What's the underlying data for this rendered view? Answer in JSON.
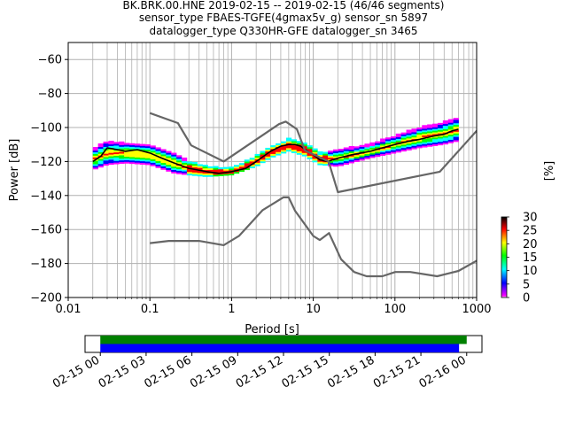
{
  "title_lines": [
    "BK.BRK.00.HNE   2019-02-15 -- 2019-02-15  (46/46 segments)",
    "sensor_type FBAES-TGFE(4gmax5v_g) sensor_sn 5897",
    "datalogger_type Q330HR-GFE datalogger_sn 3465"
  ],
  "colors": {
    "grid": "#b0b0b0",
    "mean_line": "#000000",
    "noise_model": "#666666",
    "bar_green": "#008000",
    "bar_blue": "#0000ff"
  },
  "chart_data": [
    {
      "type": "heatmap",
      "subtype": "probabilistic-power-spectral-density",
      "xlabel": "Period [s]",
      "ylabel": "Power [dB]",
      "x_scale": "log",
      "xlim": [
        0.01,
        1000
      ],
      "ylim": [
        -200,
        -50
      ],
      "x_ticks": [
        {
          "value": 0.01,
          "label": "0.01"
        },
        {
          "value": 0.1,
          "label": "0.1"
        },
        {
          "value": 1,
          "label": "1"
        },
        {
          "value": 10,
          "label": "10"
        },
        {
          "value": 100,
          "label": "100"
        },
        {
          "value": 1000,
          "label": "1000"
        }
      ],
      "y_ticks": [
        {
          "value": -60,
          "label": "−60"
        },
        {
          "value": -80,
          "label": "−80"
        },
        {
          "value": -100,
          "label": "−100"
        },
        {
          "value": -120,
          "label": "−120"
        },
        {
          "value": -140,
          "label": "−140"
        },
        {
          "value": -160,
          "label": "−160"
        },
        {
          "value": -180,
          "label": "−180"
        },
        {
          "value": -200,
          "label": "−200"
        }
      ],
      "grid": true,
      "colorbar": {
        "label": "[%]",
        "range": [
          0,
          30
        ],
        "ticks": [
          {
            "value": 0,
            "label": "0"
          },
          {
            "value": 5,
            "label": "5"
          },
          {
            "value": 10,
            "label": "10"
          },
          {
            "value": 15,
            "label": "15"
          },
          {
            "value": 20,
            "label": "20"
          },
          {
            "value": 25,
            "label": "25"
          },
          {
            "value": 30,
            "label": "30"
          }
        ],
        "colormap": [
          "#ffffff",
          "#ff00ff",
          "#0000ff",
          "#00ffff",
          "#00ff00",
          "#ffff00",
          "#ff0000",
          "#000000"
        ]
      },
      "series": [
        {
          "role": "mean",
          "x": [
            0.02,
            0.025,
            0.03,
            0.04,
            0.05,
            0.07,
            0.1,
            0.14,
            0.2,
            0.3,
            0.5,
            0.7,
            1,
            1.5,
            2,
            3,
            4,
            5,
            6,
            7,
            8,
            10,
            12,
            15,
            20,
            30,
            50,
            70,
            100,
            150,
            200,
            300,
            400,
            500,
            600
          ],
          "y": [
            -120,
            -117,
            -112,
            -113,
            -114,
            -113,
            -115,
            -118,
            -121,
            -124,
            -126,
            -127,
            -126,
            -124,
            -120,
            -114,
            -111,
            -110,
            -110,
            -111,
            -113,
            -116,
            -119,
            -120,
            -118,
            -116,
            -114,
            -112,
            -110,
            -108,
            -107,
            -105,
            -104,
            -102,
            -101
          ]
        },
        {
          "role": "high-noise-model",
          "x": [
            0.1,
            0.22,
            0.32,
            0.8,
            3.8,
            4.6,
            6.3,
            7.9,
            15.4,
            20,
            354.8,
            10000
          ],
          "y": [
            -91.5,
            -97.4,
            -110.5,
            -120,
            -98,
            -96.5,
            -101,
            -113.5,
            -120,
            -138,
            -126,
            -48.5
          ]
        },
        {
          "role": "low-noise-model",
          "x": [
            0.1,
            0.17,
            0.4,
            0.8,
            1.24,
            2.4,
            4.3,
            5,
            6,
            10,
            12,
            15.6,
            21.9,
            31.6,
            45,
            70,
            101,
            154,
            328,
            600,
            10000
          ],
          "y": [
            -168,
            -166.7,
            -166.7,
            -169.2,
            -163.7,
            -148.6,
            -141.1,
            -141.1,
            -149,
            -163.8,
            -166.2,
            -162.1,
            -177.5,
            -185,
            -187.5,
            -187.5,
            -185,
            -185,
            -187.5,
            -184.4,
            -151.5
          ]
        }
      ],
      "density_band": [
        {
          "period": 0.02,
          "low": -125,
          "high": -113
        },
        {
          "period": 0.03,
          "low": -122,
          "high": -108
        },
        {
          "period": 0.05,
          "low": -121,
          "high": -109
        },
        {
          "period": 0.1,
          "low": -122,
          "high": -110
        },
        {
          "period": 0.2,
          "low": -127,
          "high": -115
        },
        {
          "period": 0.3,
          "low": -128,
          "high": -120
        },
        {
          "period": 0.5,
          "low": -129,
          "high": -123
        },
        {
          "period": 1,
          "low": -128,
          "high": -124
        },
        {
          "period": 2,
          "low": -123,
          "high": -117
        },
        {
          "period": 3,
          "low": -118,
          "high": -111
        },
        {
          "period": 5,
          "low": -114,
          "high": -107
        },
        {
          "period": 8,
          "low": -117,
          "high": -109
        },
        {
          "period": 12,
          "low": -122,
          "high": -115
        },
        {
          "period": 20,
          "low": -123,
          "high": -113
        },
        {
          "period": 50,
          "low": -118,
          "high": -110
        },
        {
          "period": 100,
          "low": -115,
          "high": -105
        },
        {
          "period": 200,
          "low": -112,
          "high": -100
        },
        {
          "period": 400,
          "low": -110,
          "high": -97
        },
        {
          "period": 600,
          "low": -108,
          "high": -94
        }
      ]
    },
    {
      "type": "timeline",
      "x_ticks": [
        "02-15 00",
        "02-15 03",
        "02-15 06",
        "02-15 09",
        "02-15 12",
        "02-15 15",
        "02-15 18",
        "02-15 21",
        "02-16 00"
      ],
      "xlim_hours": [
        -1,
        25
      ],
      "bars": [
        {
          "role": "data-coverage",
          "color": "#008000",
          "start_hour": 0,
          "end_hour": 24
        },
        {
          "role": "psd-segments",
          "color": "#0000ff",
          "start_hour": 0,
          "end_hour": 23.5
        }
      ]
    }
  ]
}
